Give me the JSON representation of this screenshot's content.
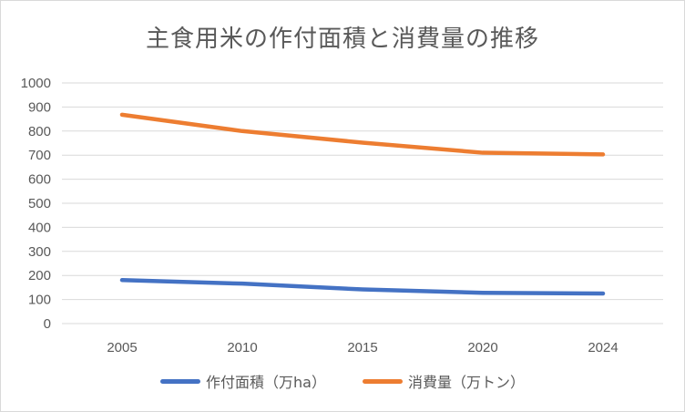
{
  "chart_data": {
    "type": "line",
    "title": "主食用米の作付面積と消費量の推移",
    "xlabel": "",
    "ylabel": "",
    "categories": [
      "2005",
      "2010",
      "2015",
      "2020",
      "2024"
    ],
    "ylim": [
      0,
      1000
    ],
    "yticks": [
      "0",
      "100",
      "200",
      "300",
      "400",
      "500",
      "600",
      "700",
      "800",
      "900",
      "1000"
    ],
    "grid": true,
    "legend_position": "bottom",
    "series": [
      {
        "name": "作付面積（万ha）",
        "color": "#4472c4",
        "values": [
          181,
          166,
          142,
          128,
          125
        ]
      },
      {
        "name": "消費量（万トン）",
        "color": "#ed7d31",
        "values": [
          868,
          800,
          752,
          710,
          703
        ]
      }
    ]
  }
}
